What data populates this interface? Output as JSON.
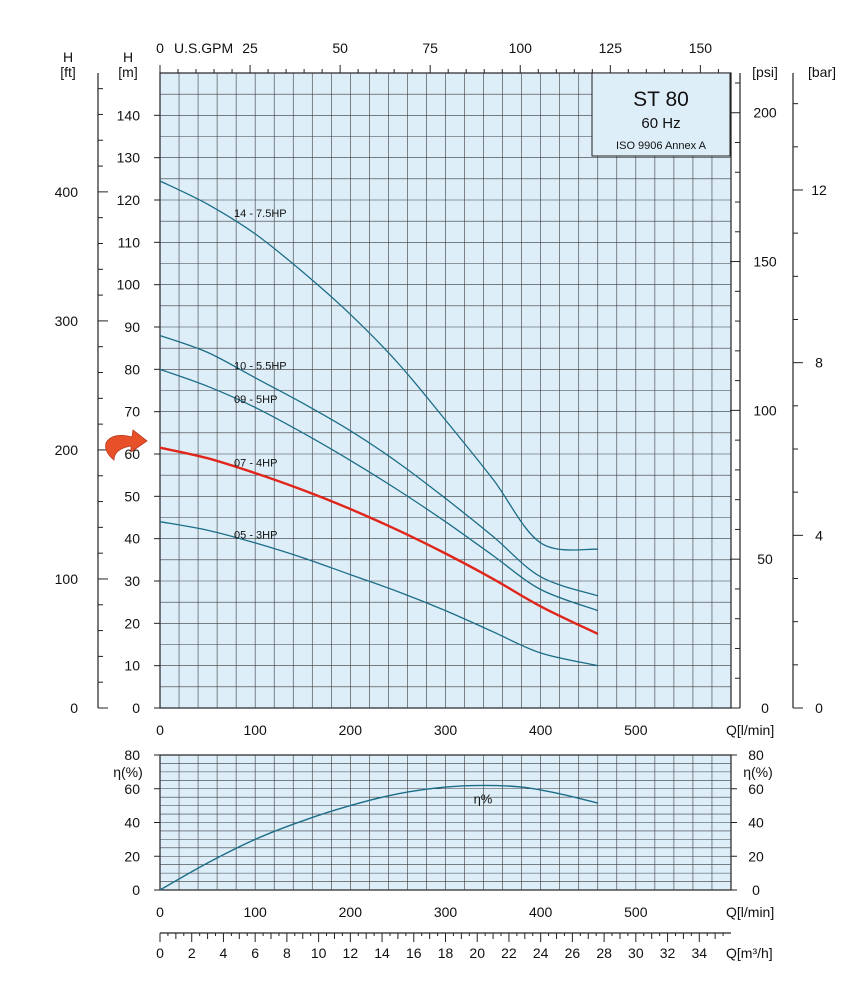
{
  "colors": {
    "plot_bg": "#ddeef9",
    "grid": "#3a3a3a",
    "curve": "#1c6d87",
    "highlight": "#e0261b",
    "arrow": "#e8502a",
    "title_box_bg": "#ddeef9"
  },
  "title_box": {
    "model": "ST 80",
    "frequency": "60 Hz",
    "standard": "ISO 9906 Annex A"
  },
  "axis_labels": {
    "h": "H",
    "ft": "[ft]",
    "m": "[m]",
    "psi": "[psi]",
    "bar": "[bar]",
    "gpm": "U.S.GPM",
    "q_lmin": "Q[l/min]",
    "q_m3h": "Q[m³/h]",
    "eta": "η(%)"
  },
  "chart_data": [
    {
      "type": "line",
      "name": "head-chart",
      "x_unit": "l/min",
      "y_unit": "m",
      "xlim": [
        0,
        600
      ],
      "ylim": [
        0,
        150
      ],
      "grid": true,
      "x_ticks": [
        0,
        100,
        200,
        300,
        400,
        500
      ],
      "y_ticks": [
        0,
        10,
        20,
        30,
        40,
        50,
        60,
        70,
        80,
        90,
        100,
        110,
        120,
        130,
        140
      ],
      "top_axis_gpm_ticks": [
        0,
        25,
        50,
        75,
        100,
        125,
        150
      ],
      "ft_ticks": [
        0,
        100,
        200,
        300,
        400
      ],
      "psi_ticks": [
        0,
        50,
        100,
        150,
        200
      ],
      "bar_ticks": [
        0,
        4,
        8,
        12
      ],
      "series": [
        {
          "name": "14 - 7.5HP",
          "x": [
            0,
            50,
            100,
            150,
            200,
            250,
            300,
            350,
            400,
            460
          ],
          "y": [
            124.5,
            119,
            112,
            103,
            93,
            81.5,
            68,
            54,
            39,
            37.5
          ],
          "label_at": [
            82,
            116
          ]
        },
        {
          "name": "10 - 5.5HP",
          "x": [
            0,
            50,
            100,
            150,
            200,
            250,
            300,
            350,
            400,
            460
          ],
          "y": [
            88,
            84,
            78,
            72,
            65.5,
            58,
            49.5,
            40.5,
            31,
            26.5
          ],
          "label_at": [
            82,
            80
          ]
        },
        {
          "name": "09 - 5HP",
          "x": [
            0,
            50,
            100,
            150,
            200,
            250,
            300,
            350,
            400,
            460
          ],
          "y": [
            80,
            76,
            71,
            65,
            58.5,
            51.5,
            44,
            36,
            28,
            23
          ],
          "label_at": [
            82,
            72
          ]
        },
        {
          "name": "07 - 4HP",
          "x": [
            0,
            50,
            100,
            150,
            200,
            250,
            300,
            350,
            400,
            460
          ],
          "y": [
            61.5,
            59,
            55.5,
            51.5,
            47,
            42,
            36.5,
            30.5,
            24,
            17.5
          ],
          "label_at": [
            82,
            57
          ],
          "highlight": true
        },
        {
          "name": "05 - 3HP",
          "x": [
            0,
            50,
            100,
            150,
            200,
            250,
            300,
            350,
            400,
            460
          ],
          "y": [
            44,
            42,
            39,
            35.5,
            31.5,
            27.5,
            23,
            18,
            13,
            10
          ],
          "label_at": [
            82,
            40
          ]
        }
      ]
    },
    {
      "type": "line",
      "name": "efficiency-chart",
      "x_unit": "l/min",
      "y_unit": "%",
      "xlim": [
        0,
        600
      ],
      "ylim": [
        0,
        80
      ],
      "grid": true,
      "x_ticks": [
        0,
        100,
        200,
        300,
        400,
        500
      ],
      "y_ticks": [
        0,
        20,
        40,
        60,
        80
      ],
      "m3h_ticks": [
        0,
        2,
        4,
        6,
        8,
        10,
        12,
        14,
        16,
        18,
        20,
        22,
        24,
        26,
        28,
        30,
        32,
        34
      ],
      "series": [
        {
          "name": "η%",
          "x": [
            0,
            50,
            100,
            150,
            200,
            250,
            300,
            340,
            380,
            420,
            460
          ],
          "y": [
            0,
            16,
            30,
            41,
            50,
            57,
            61,
            62,
            61,
            57,
            51.5
          ],
          "label_at": [
            340,
            52
          ]
        }
      ]
    }
  ]
}
